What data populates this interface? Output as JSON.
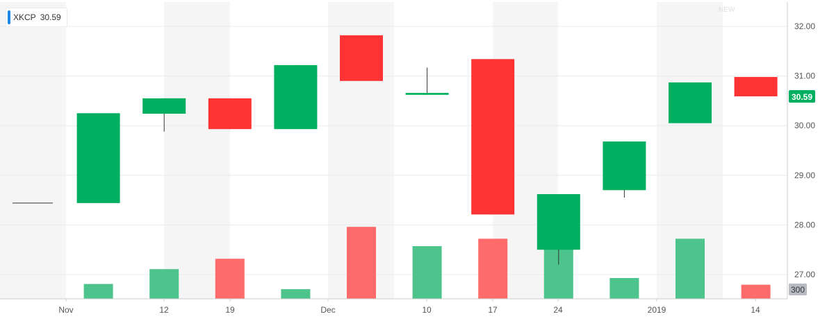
{
  "legend": {
    "symbol": "XKCP",
    "value": "30.59",
    "swatch_color": "#1e88e5"
  },
  "watermark_text": "NEW",
  "chart_data": {
    "type": "candlestick",
    "symbol": "XKCP",
    "last_price": 30.59,
    "last_price_label": "30.59",
    "volume_label": "300",
    "ylim": [
      26.6,
      32.5
    ],
    "yticks": [
      "32.00",
      "31.00",
      "30.00",
      "29.00",
      "28.00",
      "27.00"
    ],
    "xticks": [
      "Nov",
      "12",
      "19",
      "Dec",
      "10",
      "17",
      "24",
      "2019",
      "14"
    ],
    "colors": {
      "up": "#00b060",
      "down": "#ff3333",
      "vol_up": "#4cc48c",
      "vol_down": "#ff6b6b"
    },
    "grid": true,
    "candles": [
      {
        "open": 28.44,
        "high": 28.44,
        "low": 28.44,
        "close": 28.44,
        "volume": 0
      },
      {
        "open": 28.44,
        "high": 30.25,
        "low": 28.44,
        "close": 30.25,
        "volume": 20
      },
      {
        "open": 30.24,
        "high": 30.55,
        "low": 29.88,
        "close": 30.55,
        "volume": 40
      },
      {
        "open": 30.55,
        "high": 30.55,
        "low": 29.93,
        "close": 29.93,
        "volume": 54
      },
      {
        "open": 29.93,
        "high": 31.22,
        "low": 29.93,
        "close": 31.22,
        "volume": 13
      },
      {
        "open": 31.82,
        "high": 31.82,
        "low": 30.9,
        "close": 30.9,
        "volume": 97
      },
      {
        "open": 30.62,
        "high": 31.17,
        "low": 30.62,
        "close": 30.66,
        "volume": 71
      },
      {
        "open": 31.34,
        "high": 31.34,
        "low": 28.21,
        "close": 28.21,
        "volume": 81
      },
      {
        "open": 27.5,
        "high": 28.62,
        "low": 27.2,
        "close": 28.62,
        "volume": 80
      },
      {
        "open": 28.7,
        "high": 29.68,
        "low": 28.55,
        "close": 29.68,
        "volume": 28
      },
      {
        "open": 30.05,
        "high": 30.87,
        "low": 30.05,
        "close": 30.87,
        "volume": 81
      },
      {
        "open": 30.98,
        "high": 30.98,
        "low": 30.59,
        "close": 30.59,
        "volume": 19
      }
    ]
  }
}
